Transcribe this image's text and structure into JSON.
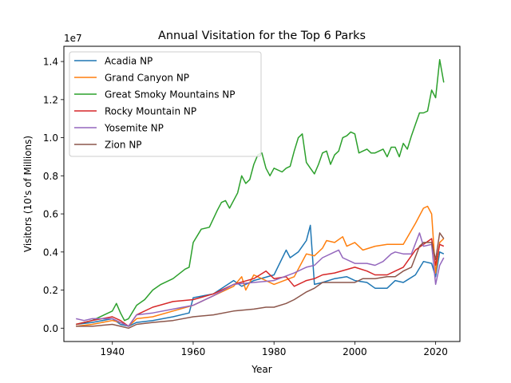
{
  "chart_data": {
    "type": "line",
    "title": "Annual Visitation for the Top 6 Parks",
    "xlabel": "Year",
    "ylabel": "Visitors (10's of Millions)",
    "y_offset_text": "1e7",
    "xlim": [
      1928,
      2026
    ],
    "ylim": [
      -700000,
      14800000
    ],
    "x_ticks": [
      1940,
      1960,
      1980,
      2000,
      2020
    ],
    "y_ticks": [
      0,
      2000000,
      4000000,
      6000000,
      8000000,
      10000000,
      12000000,
      14000000
    ],
    "y_tick_labels": [
      "0.0",
      "0.2",
      "0.4",
      "0.6",
      "0.8",
      "1.0",
      "1.2",
      "1.4"
    ],
    "legend_position": "top-left",
    "grid": false,
    "series": [
      {
        "name": "Acadia NP",
        "color": "#1f77b4",
        "points": [
          [
            1931,
            200000
          ],
          [
            1935,
            300000
          ],
          [
            1940,
            500000
          ],
          [
            1942,
            200000
          ],
          [
            1944,
            100000
          ],
          [
            1946,
            300000
          ],
          [
            1950,
            400000
          ],
          [
            1955,
            600000
          ],
          [
            1959,
            800000
          ],
          [
            1960,
            1600000
          ],
          [
            1965,
            1800000
          ],
          [
            1970,
            2500000
          ],
          [
            1972,
            2200000
          ],
          [
            1975,
            2500000
          ],
          [
            1980,
            2800000
          ],
          [
            1983,
            4100000
          ],
          [
            1984,
            3700000
          ],
          [
            1986,
            4000000
          ],
          [
            1988,
            4600000
          ],
          [
            1989,
            5400000
          ],
          [
            1990,
            2300000
          ],
          [
            1992,
            2400000
          ],
          [
            1995,
            2600000
          ],
          [
            1998,
            2700000
          ],
          [
            2000,
            2500000
          ],
          [
            2003,
            2400000
          ],
          [
            2005,
            2100000
          ],
          [
            2008,
            2100000
          ],
          [
            2010,
            2500000
          ],
          [
            2012,
            2400000
          ],
          [
            2015,
            2800000
          ],
          [
            2017,
            3500000
          ],
          [
            2019,
            3400000
          ],
          [
            2020,
            2700000
          ],
          [
            2021,
            4000000
          ],
          [
            2022,
            3900000
          ]
        ]
      },
      {
        "name": "Grand Canyon NP",
        "color": "#ff7f0e",
        "points": [
          [
            1931,
            100000
          ],
          [
            1935,
            200000
          ],
          [
            1940,
            400000
          ],
          [
            1942,
            300000
          ],
          [
            1944,
            100000
          ],
          [
            1946,
            500000
          ],
          [
            1950,
            600000
          ],
          [
            1955,
            900000
          ],
          [
            1960,
            1200000
          ],
          [
            1965,
            1700000
          ],
          [
            1970,
            2200000
          ],
          [
            1972,
            2700000
          ],
          [
            1973,
            2000000
          ],
          [
            1975,
            2800000
          ],
          [
            1980,
            2300000
          ],
          [
            1985,
            2700000
          ],
          [
            1988,
            3900000
          ],
          [
            1990,
            3800000
          ],
          [
            1992,
            4200000
          ],
          [
            1993,
            4600000
          ],
          [
            1995,
            4500000
          ],
          [
            1997,
            4800000
          ],
          [
            1998,
            4300000
          ],
          [
            2000,
            4500000
          ],
          [
            2002,
            4100000
          ],
          [
            2005,
            4300000
          ],
          [
            2008,
            4400000
          ],
          [
            2010,
            4400000
          ],
          [
            2012,
            4400000
          ],
          [
            2015,
            5500000
          ],
          [
            2017,
            6300000
          ],
          [
            2018,
            6400000
          ],
          [
            2019,
            6000000
          ],
          [
            2020,
            2900000
          ],
          [
            2021,
            4500000
          ],
          [
            2022,
            4700000
          ]
        ]
      },
      {
        "name": "Great Smoky Mountains NP",
        "color": "#2ca02c",
        "points": [
          [
            1931,
            200000
          ],
          [
            1935,
            400000
          ],
          [
            1938,
            700000
          ],
          [
            1940,
            900000
          ],
          [
            1941,
            1300000
          ],
          [
            1942,
            800000
          ],
          [
            1943,
            400000
          ],
          [
            1944,
            500000
          ],
          [
            1946,
            1200000
          ],
          [
            1948,
            1500000
          ],
          [
            1950,
            2000000
          ],
          [
            1952,
            2300000
          ],
          [
            1955,
            2600000
          ],
          [
            1958,
            3100000
          ],
          [
            1959,
            3200000
          ],
          [
            1960,
            4500000
          ],
          [
            1962,
            5200000
          ],
          [
            1964,
            5300000
          ],
          [
            1966,
            6200000
          ],
          [
            1967,
            6600000
          ],
          [
            1968,
            6700000
          ],
          [
            1969,
            6300000
          ],
          [
            1971,
            7100000
          ],
          [
            1972,
            8000000
          ],
          [
            1973,
            7600000
          ],
          [
            1974,
            7800000
          ],
          [
            1975,
            8600000
          ],
          [
            1976,
            9100000
          ],
          [
            1977,
            9200000
          ],
          [
            1978,
            8400000
          ],
          [
            1979,
            8000000
          ],
          [
            1980,
            8400000
          ],
          [
            1982,
            8200000
          ],
          [
            1983,
            8400000
          ],
          [
            1984,
            8500000
          ],
          [
            1985,
            9300000
          ],
          [
            1986,
            10000000
          ],
          [
            1987,
            10200000
          ],
          [
            1988,
            8700000
          ],
          [
            1989,
            8400000
          ],
          [
            1990,
            8100000
          ],
          [
            1991,
            8600000
          ],
          [
            1992,
            9200000
          ],
          [
            1993,
            9300000
          ],
          [
            1994,
            8600000
          ],
          [
            1995,
            9100000
          ],
          [
            1996,
            9300000
          ],
          [
            1997,
            10000000
          ],
          [
            1998,
            10100000
          ],
          [
            1999,
            10300000
          ],
          [
            2000,
            10200000
          ],
          [
            2001,
            9200000
          ],
          [
            2002,
            9300000
          ],
          [
            2003,
            9400000
          ],
          [
            2004,
            9200000
          ],
          [
            2005,
            9200000
          ],
          [
            2006,
            9300000
          ],
          [
            2007,
            9400000
          ],
          [
            2008,
            9000000
          ],
          [
            2009,
            9500000
          ],
          [
            2010,
            9500000
          ],
          [
            2011,
            9000000
          ],
          [
            2012,
            9700000
          ],
          [
            2013,
            9400000
          ],
          [
            2014,
            10100000
          ],
          [
            2015,
            10700000
          ],
          [
            2016,
            11300000
          ],
          [
            2017,
            11300000
          ],
          [
            2018,
            11400000
          ],
          [
            2019,
            12500000
          ],
          [
            2020,
            12100000
          ],
          [
            2021,
            14100000
          ],
          [
            2022,
            12900000
          ]
        ]
      },
      {
        "name": "Rocky Mountain NP",
        "color": "#d62728",
        "points": [
          [
            1931,
            200000
          ],
          [
            1935,
            400000
          ],
          [
            1940,
            600000
          ],
          [
            1942,
            400000
          ],
          [
            1944,
            100000
          ],
          [
            1946,
            700000
          ],
          [
            1950,
            1100000
          ],
          [
            1955,
            1400000
          ],
          [
            1960,
            1500000
          ],
          [
            1965,
            1800000
          ],
          [
            1970,
            2300000
          ],
          [
            1975,
            2600000
          ],
          [
            1978,
            3000000
          ],
          [
            1980,
            2600000
          ],
          [
            1983,
            2700000
          ],
          [
            1985,
            2200000
          ],
          [
            1988,
            2500000
          ],
          [
            1990,
            2600000
          ],
          [
            1992,
            2800000
          ],
          [
            1995,
            2900000
          ],
          [
            2000,
            3200000
          ],
          [
            2003,
            3000000
          ],
          [
            2005,
            2800000
          ],
          [
            2008,
            2800000
          ],
          [
            2010,
            3000000
          ],
          [
            2012,
            3200000
          ],
          [
            2015,
            4100000
          ],
          [
            2017,
            4400000
          ],
          [
            2019,
            4700000
          ],
          [
            2020,
            3300000
          ],
          [
            2021,
            4400000
          ],
          [
            2022,
            4300000
          ]
        ]
      },
      {
        "name": "Yosemite NP",
        "color": "#9467bd",
        "points": [
          [
            1931,
            500000
          ],
          [
            1933,
            400000
          ],
          [
            1935,
            500000
          ],
          [
            1940,
            500000
          ],
          [
            1942,
            300000
          ],
          [
            1944,
            100000
          ],
          [
            1946,
            700000
          ],
          [
            1950,
            800000
          ],
          [
            1955,
            1000000
          ],
          [
            1960,
            1200000
          ],
          [
            1965,
            1700000
          ],
          [
            1970,
            2300000
          ],
          [
            1975,
            2400000
          ],
          [
            1980,
            2500000
          ],
          [
            1985,
            2900000
          ],
          [
            1988,
            3200000
          ],
          [
            1990,
            3300000
          ],
          [
            1992,
            3700000
          ],
          [
            1995,
            4000000
          ],
          [
            1996,
            4100000
          ],
          [
            1997,
            3700000
          ],
          [
            1999,
            3500000
          ],
          [
            2000,
            3400000
          ],
          [
            2003,
            3400000
          ],
          [
            2005,
            3300000
          ],
          [
            2007,
            3500000
          ],
          [
            2009,
            3900000
          ],
          [
            2010,
            4000000
          ],
          [
            2012,
            3900000
          ],
          [
            2014,
            3900000
          ],
          [
            2016,
            5000000
          ],
          [
            2017,
            4300000
          ],
          [
            2019,
            4400000
          ],
          [
            2020,
            2300000
          ],
          [
            2021,
            3300000
          ],
          [
            2022,
            3700000
          ]
        ]
      },
      {
        "name": "Zion NP",
        "color": "#8c564b",
        "points": [
          [
            1931,
            100000
          ],
          [
            1935,
            100000
          ],
          [
            1940,
            200000
          ],
          [
            1942,
            100000
          ],
          [
            1944,
            0
          ],
          [
            1946,
            200000
          ],
          [
            1950,
            300000
          ],
          [
            1955,
            400000
          ],
          [
            1960,
            600000
          ],
          [
            1965,
            700000
          ],
          [
            1970,
            900000
          ],
          [
            1975,
            1000000
          ],
          [
            1978,
            1100000
          ],
          [
            1980,
            1100000
          ],
          [
            1983,
            1300000
          ],
          [
            1985,
            1500000
          ],
          [
            1988,
            1900000
          ],
          [
            1990,
            2100000
          ],
          [
            1992,
            2400000
          ],
          [
            1995,
            2400000
          ],
          [
            1998,
            2400000
          ],
          [
            2000,
            2400000
          ],
          [
            2002,
            2600000
          ],
          [
            2005,
            2600000
          ],
          [
            2008,
            2700000
          ],
          [
            2010,
            2700000
          ],
          [
            2012,
            3000000
          ],
          [
            2014,
            3200000
          ],
          [
            2016,
            4300000
          ],
          [
            2017,
            4500000
          ],
          [
            2019,
            4500000
          ],
          [
            2020,
            3600000
          ],
          [
            2021,
            5000000
          ],
          [
            2022,
            4700000
          ]
        ]
      }
    ]
  }
}
